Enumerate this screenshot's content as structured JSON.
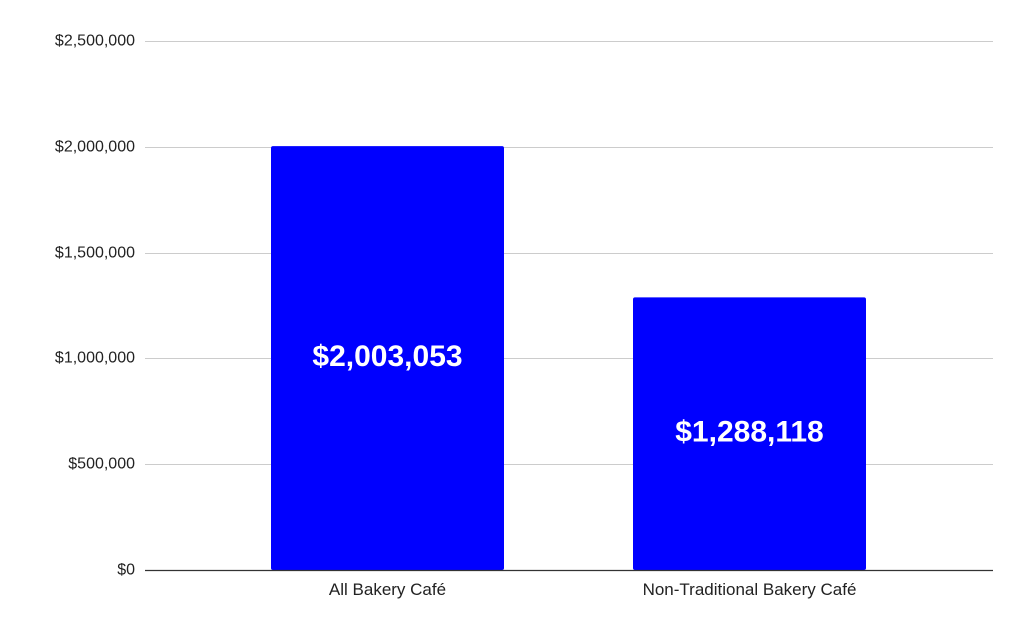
{
  "chart_data": {
    "type": "bar",
    "title": "",
    "xlabel": "",
    "ylabel": "",
    "categories": [
      "All Bakery Café",
      "Non-Traditional Bakery Café"
    ],
    "values": [
      2003053,
      1288118
    ],
    "data_labels": [
      "$2,003,053",
      "$1,288,118"
    ],
    "ylim": [
      0,
      2500000
    ],
    "y_ticks": [
      0,
      500000,
      1000000,
      1500000,
      2000000,
      2500000
    ],
    "y_tick_labels": [
      "$0",
      "$500,000",
      "$1,000,000",
      "$1,500,000",
      "$2,000,000",
      "$2,500,000"
    ],
    "grid": true,
    "legend": "none",
    "colors": {
      "bar": "#0000ff",
      "data_label": "#ffffff",
      "grid": "#cccccc",
      "axis": "#333333",
      "text": "#222222"
    }
  }
}
